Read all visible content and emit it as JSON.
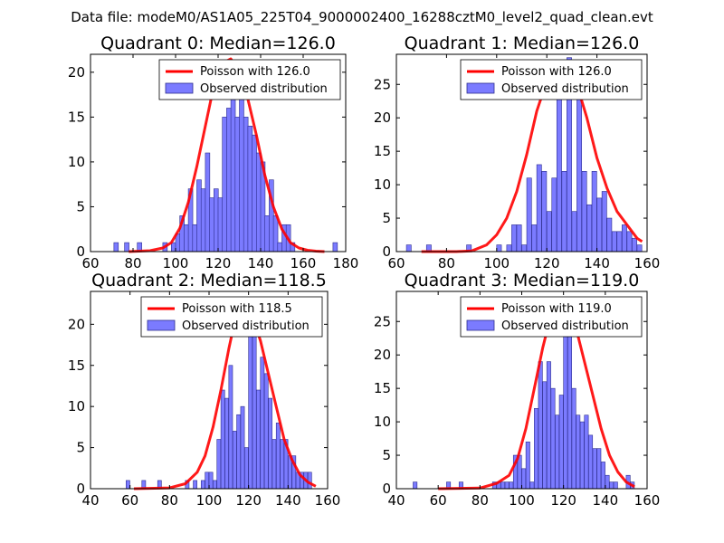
{
  "suptitle": "Data file: modeM0/AS1A05_225T04_9000002400_16288cztM0_level2_quad_clean.evt",
  "colors": {
    "bar_fill": "#7b7bff",
    "bar_edge": "#2d2d8f",
    "curve": "#ff0000",
    "axis": "#000000"
  },
  "legend": {
    "poisson_prefix": "Poisson with",
    "observed": "Observed distribution"
  },
  "chart_data": [
    {
      "type": "bar+line",
      "title": "Quadrant 0: Median=126.0",
      "median": 126.0,
      "xlim": [
        60,
        180
      ],
      "ylim": [
        0,
        22
      ],
      "xticks": [
        60,
        80,
        100,
        120,
        140,
        160,
        180
      ],
      "yticks": [
        0,
        5,
        10,
        15,
        20
      ],
      "legend_label": "Poisson with 126.0",
      "bin_width": 2.1,
      "bins": [
        [
          71,
          1
        ],
        [
          76,
          1
        ],
        [
          82,
          1
        ],
        [
          94,
          1
        ],
        [
          98,
          1
        ],
        [
          100,
          2
        ],
        [
          102,
          4
        ],
        [
          104,
          3
        ],
        [
          106,
          7
        ],
        [
          108,
          3
        ],
        [
          110,
          8
        ],
        [
          112,
          7
        ],
        [
          114,
          11
        ],
        [
          116,
          6
        ],
        [
          118,
          7
        ],
        [
          120,
          6
        ],
        [
          122,
          15
        ],
        [
          124,
          16
        ],
        [
          126,
          17
        ],
        [
          128,
          15
        ],
        [
          130,
          20
        ],
        [
          132,
          15
        ],
        [
          134,
          14
        ],
        [
          136,
          13
        ],
        [
          138,
          11
        ],
        [
          140,
          10
        ],
        [
          142,
          4
        ],
        [
          144,
          8
        ],
        [
          146,
          4
        ],
        [
          148,
          1
        ],
        [
          150,
          3
        ],
        [
          152,
          3
        ],
        [
          154,
          1
        ],
        [
          156,
          0
        ],
        [
          158,
          0
        ],
        [
          160,
          0
        ],
        [
          174,
          1
        ]
      ],
      "curve": [
        [
          78,
          0
        ],
        [
          88,
          0.1
        ],
        [
          94,
          0.4
        ],
        [
          98,
          1
        ],
        [
          102,
          2.6
        ],
        [
          106,
          5.5
        ],
        [
          110,
          9.5
        ],
        [
          114,
          14
        ],
        [
          118,
          18.5
        ],
        [
          122,
          21
        ],
        [
          126,
          21.5
        ],
        [
          130,
          20
        ],
        [
          134,
          17
        ],
        [
          138,
          13
        ],
        [
          142,
          8.5
        ],
        [
          146,
          5
        ],
        [
          150,
          2.5
        ],
        [
          154,
          1
        ],
        [
          158,
          0.4
        ],
        [
          162,
          0.15
        ],
        [
          166,
          0.05
        ],
        [
          170,
          0
        ]
      ]
    },
    {
      "type": "bar+line",
      "title": "Quadrant 1: Median=126.0",
      "median": 126.0,
      "xlim": [
        60,
        160
      ],
      "ylim": [
        0,
        29.5
      ],
      "xticks": [
        60,
        80,
        100,
        120,
        140,
        160
      ],
      "yticks": [
        0,
        5,
        10,
        15,
        20,
        25
      ],
      "legend_label": "Poisson with 126.0",
      "bin_width": 1.9,
      "bins": [
        [
          64,
          1
        ],
        [
          72,
          1
        ],
        [
          88,
          1
        ],
        [
          100,
          1
        ],
        [
          104,
          1
        ],
        [
          106,
          4
        ],
        [
          108,
          4
        ],
        [
          110,
          1
        ],
        [
          112,
          11
        ],
        [
          114,
          4
        ],
        [
          116,
          13
        ],
        [
          118,
          12
        ],
        [
          120,
          6
        ],
        [
          122,
          11
        ],
        [
          124,
          24
        ],
        [
          126,
          12
        ],
        [
          128,
          29
        ],
        [
          130,
          6
        ],
        [
          132,
          28
        ],
        [
          134,
          12
        ],
        [
          136,
          7
        ],
        [
          138,
          12
        ],
        [
          140,
          8
        ],
        [
          142,
          9
        ],
        [
          144,
          5
        ],
        [
          146,
          3
        ],
        [
          148,
          3
        ],
        [
          150,
          4
        ],
        [
          152,
          3
        ],
        [
          154,
          2
        ],
        [
          156,
          1
        ]
      ],
      "curve": [
        [
          70,
          0
        ],
        [
          84,
          0
        ],
        [
          90,
          0.1
        ],
        [
          96,
          1
        ],
        [
          100,
          2.5
        ],
        [
          104,
          5
        ],
        [
          108,
          9
        ],
        [
          112,
          14.5
        ],
        [
          116,
          21
        ],
        [
          120,
          25.5
        ],
        [
          124,
          27.5
        ],
        [
          126,
          28
        ],
        [
          128,
          27.5
        ],
        [
          132,
          25
        ],
        [
          136,
          20
        ],
        [
          140,
          14
        ],
        [
          144,
          9.5
        ],
        [
          148,
          6
        ],
        [
          152,
          4
        ],
        [
          156,
          2
        ],
        [
          158,
          1.5
        ]
      ]
    },
    {
      "type": "bar+line",
      "title": "Quadrant 2: Median=118.5",
      "median": 118.5,
      "xlim": [
        40,
        160
      ],
      "ylim": [
        0,
        24
      ],
      "xticks": [
        40,
        60,
        80,
        100,
        120,
        140,
        160
      ],
      "yticks": [
        0,
        5,
        10,
        15,
        20
      ],
      "legend_label": "Poisson with 118.5",
      "bin_width": 1.9,
      "bins": [
        [
          58,
          1
        ],
        [
          60,
          0
        ],
        [
          66,
          1
        ],
        [
          74,
          1
        ],
        [
          88,
          1
        ],
        [
          92,
          1
        ],
        [
          96,
          1
        ],
        [
          98,
          2
        ],
        [
          100,
          2
        ],
        [
          102,
          1
        ],
        [
          104,
          6
        ],
        [
          106,
          12
        ],
        [
          108,
          11
        ],
        [
          110,
          15
        ],
        [
          112,
          7
        ],
        [
          114,
          9
        ],
        [
          116,
          10
        ],
        [
          118,
          5
        ],
        [
          120,
          19
        ],
        [
          122,
          23
        ],
        [
          124,
          12
        ],
        [
          126,
          16
        ],
        [
          128,
          14
        ],
        [
          130,
          11
        ],
        [
          132,
          6
        ],
        [
          134,
          8
        ],
        [
          136,
          6
        ],
        [
          138,
          6
        ],
        [
          140,
          4
        ],
        [
          142,
          4
        ],
        [
          144,
          2
        ],
        [
          146,
          2
        ],
        [
          148,
          2
        ],
        [
          150,
          2
        ]
      ],
      "curve": [
        [
          62,
          0
        ],
        [
          80,
          0.1
        ],
        [
          88,
          0.6
        ],
        [
          94,
          2
        ],
        [
          98,
          4
        ],
        [
          102,
          7.5
        ],
        [
          106,
          12
        ],
        [
          110,
          17
        ],
        [
          114,
          21.5
        ],
        [
          118,
          23
        ],
        [
          122,
          21
        ],
        [
          126,
          18
        ],
        [
          130,
          14
        ],
        [
          134,
          10
        ],
        [
          138,
          6
        ],
        [
          142,
          3.5
        ],
        [
          146,
          1.7
        ],
        [
          150,
          0.8
        ],
        [
          154,
          0.3
        ]
      ]
    },
    {
      "type": "bar+line",
      "title": "Quadrant 3: Median=119.0",
      "median": 119.0,
      "xlim": [
        40,
        160
      ],
      "ylim": [
        0,
        29.5
      ],
      "xticks": [
        40,
        60,
        80,
        100,
        120,
        140,
        160
      ],
      "yticks": [
        0,
        5,
        10,
        15,
        20,
        25
      ],
      "legend_label": "Poisson with 119.0",
      "bin_width": 1.9,
      "bins": [
        [
          48,
          1
        ],
        [
          64,
          1
        ],
        [
          70,
          1
        ],
        [
          86,
          1
        ],
        [
          88,
          1
        ],
        [
          90,
          1
        ],
        [
          92,
          1
        ],
        [
          94,
          1
        ],
        [
          96,
          5
        ],
        [
          98,
          5
        ],
        [
          100,
          3
        ],
        [
          102,
          7
        ],
        [
          104,
          1
        ],
        [
          106,
          12
        ],
        [
          108,
          19
        ],
        [
          110,
          16
        ],
        [
          112,
          19
        ],
        [
          114,
          15
        ],
        [
          116,
          11
        ],
        [
          118,
          14
        ],
        [
          120,
          25
        ],
        [
          122,
          28
        ],
        [
          124,
          15
        ],
        [
          126,
          11
        ],
        [
          128,
          10
        ],
        [
          130,
          11
        ],
        [
          132,
          8
        ],
        [
          134,
          6
        ],
        [
          136,
          6
        ],
        [
          138,
          4
        ],
        [
          140,
          2
        ],
        [
          142,
          1
        ],
        [
          144,
          1
        ],
        [
          150,
          2
        ],
        [
          152,
          1
        ]
      ],
      "curve": [
        [
          60,
          0
        ],
        [
          80,
          0.1
        ],
        [
          88,
          0.8
        ],
        [
          94,
          2
        ],
        [
          98,
          4.5
        ],
        [
          102,
          9
        ],
        [
          106,
          15
        ],
        [
          110,
          21
        ],
        [
          114,
          26
        ],
        [
          118,
          28
        ],
        [
          122,
          27
        ],
        [
          126,
          24
        ],
        [
          130,
          19
        ],
        [
          134,
          14
        ],
        [
          138,
          9
        ],
        [
          142,
          5
        ],
        [
          146,
          2.5
        ],
        [
          150,
          1
        ],
        [
          154,
          0.3
        ]
      ]
    }
  ]
}
